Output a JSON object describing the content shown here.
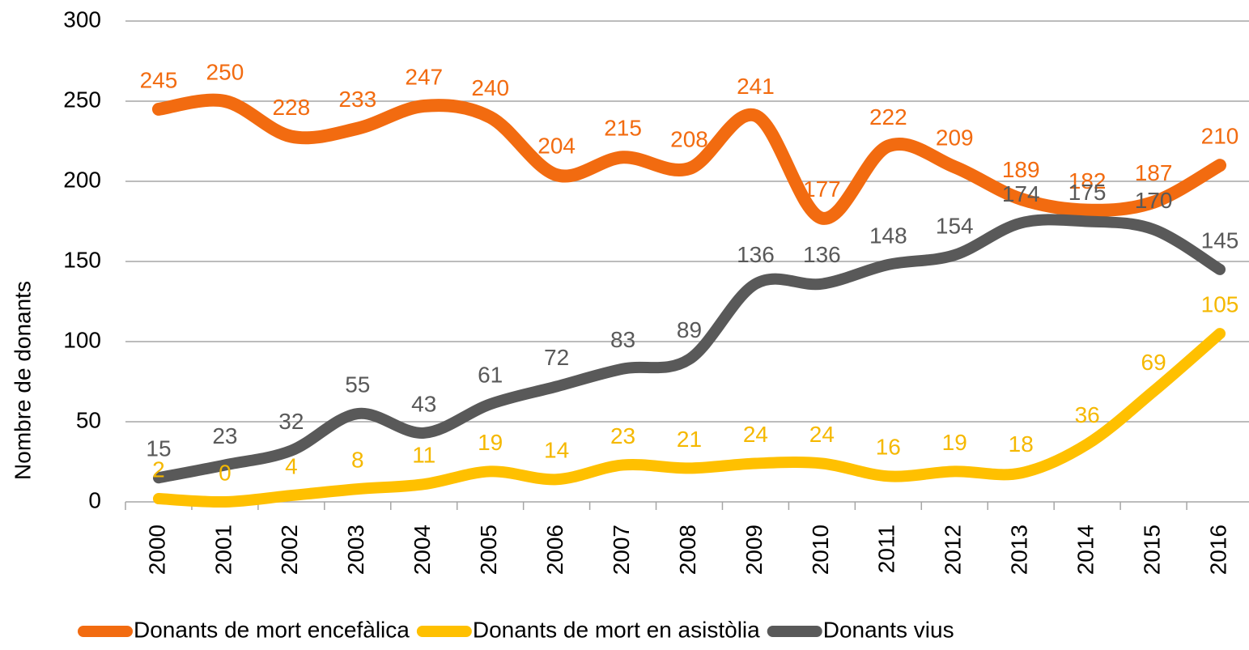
{
  "chart_data": {
    "type": "line",
    "y_label": "Nombre de donants",
    "categories": [
      "2000",
      "2001",
      "2002",
      "2003",
      "2004",
      "2005",
      "2006",
      "2007",
      "2008",
      "2009",
      "2010",
      "2011",
      "2012",
      "2013",
      "2014",
      "2015",
      "2016"
    ],
    "series": [
      {
        "name": "Donants de mort encefàlica",
        "color": "#f26b10",
        "label_color": "#f26b10",
        "values": [
          245,
          250,
          228,
          233,
          247,
          240,
          204,
          215,
          208,
          241,
          177,
          222,
          209,
          189,
          182,
          187,
          210
        ]
      },
      {
        "name": "Donants de mort en asistòlia",
        "color": "#ffc000",
        "label_color": "#f5b800",
        "values": [
          2,
          0,
          4,
          8,
          11,
          19,
          14,
          23,
          21,
          24,
          24,
          16,
          19,
          18,
          36,
          69,
          105
        ]
      },
      {
        "name": "Donants vius",
        "color": "#595959",
        "label_color": "#595959",
        "values": [
          15,
          23,
          32,
          55,
          43,
          61,
          72,
          83,
          89,
          136,
          136,
          148,
          154,
          174,
          175,
          170,
          145
        ]
      }
    ],
    "ylim": [
      0,
      300
    ],
    "yticks": [
      0,
      50,
      100,
      150,
      200,
      250,
      300
    ],
    "grid": true,
    "legend": "bottom"
  }
}
